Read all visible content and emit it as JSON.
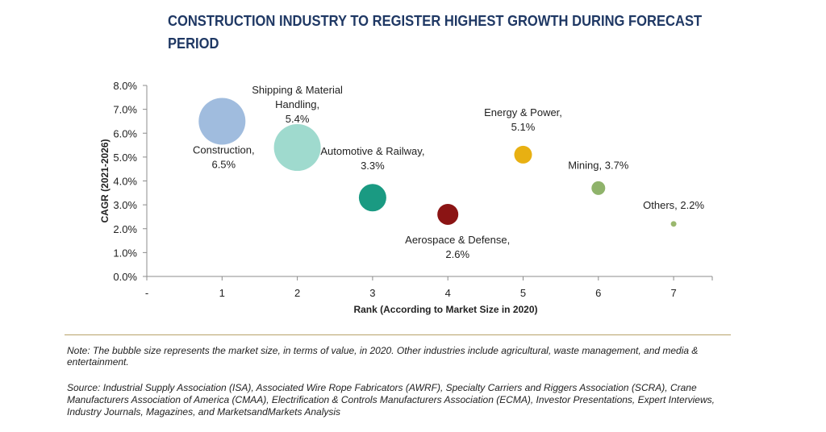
{
  "title": "CONSTRUCTION INDUSTRY TO REGISTER HIGHEST GROWTH DURING FORECAST PERIOD",
  "note": "Note: The bubble size represents the market size, in terms of value, in 2020. Other industries include agricultural, waste management, and media & entertainment.",
  "source": "Source: Industrial Supply Association (ISA), Associated Wire Rope Fabricators (AWRF), Specialty Carriers and Riggers Association (SCRA), Crane Manufacturers Association of America (CMAA), Electrification & Controls Manufacturers Association (ECMA), Investor Presentations, Expert Interviews, Industry Journals, Magazines, and MarketsandMarkets Analysis",
  "chart_data": {
    "type": "scatter",
    "title": "CONSTRUCTION INDUSTRY TO REGISTER HIGHEST GROWTH DURING FORECAST PERIOD",
    "xlabel": "Rank (According to Market Size in 2020)",
    "ylabel": "CAGR (2021-2026)",
    "x_tick_labels": [
      "-",
      "1",
      "2",
      "3",
      "4",
      "5",
      "6",
      "7"
    ],
    "y_tick_labels": [
      "0.0%",
      "1.0%",
      "2.0%",
      "3.0%",
      "4.0%",
      "5.0%",
      "6.0%",
      "7.0%",
      "8.0%"
    ],
    "xlim": [
      0,
      7.5
    ],
    "ylim": [
      0,
      8
    ],
    "grid": false,
    "bubble_size_meaning": "market size",
    "points": [
      {
        "name": "Construction",
        "x": 1,
        "y": 6.5,
        "label_lines": [
          "Construction,",
          "6.5%"
        ],
        "color": "#8fb0d8"
      },
      {
        "name": "Shipping & Material Handling",
        "x": 2,
        "y": 5.4,
        "label_lines": [
          "Shipping & Material",
          "Handling,",
          "5.4%"
        ],
        "color": "#8ed3c6"
      },
      {
        "name": "Automotive & Railway",
        "x": 3,
        "y": 3.3,
        "label_lines": [
          "Automotive & Railway,",
          "3.3%"
        ],
        "color": "#1a9a82"
      },
      {
        "name": "Aerospace & Defense",
        "x": 4,
        "y": 2.6,
        "label_lines": [
          "Aerospace & Defense,",
          "2.6%"
        ],
        "color": "#8b1414"
      },
      {
        "name": "Energy & Power",
        "x": 5,
        "y": 5.1,
        "label_lines": [
          "Energy & Power,",
          "5.1%"
        ],
        "color": "#e8b012"
      },
      {
        "name": "Mining",
        "x": 6,
        "y": 3.7,
        "label_lines": [
          "Mining, 3.7%"
        ],
        "color": "#8fb36b"
      },
      {
        "name": "Others",
        "x": 7,
        "y": 2.2,
        "label_lines": [
          "Others, 2.2%"
        ],
        "color": "#9ab86e"
      }
    ]
  }
}
